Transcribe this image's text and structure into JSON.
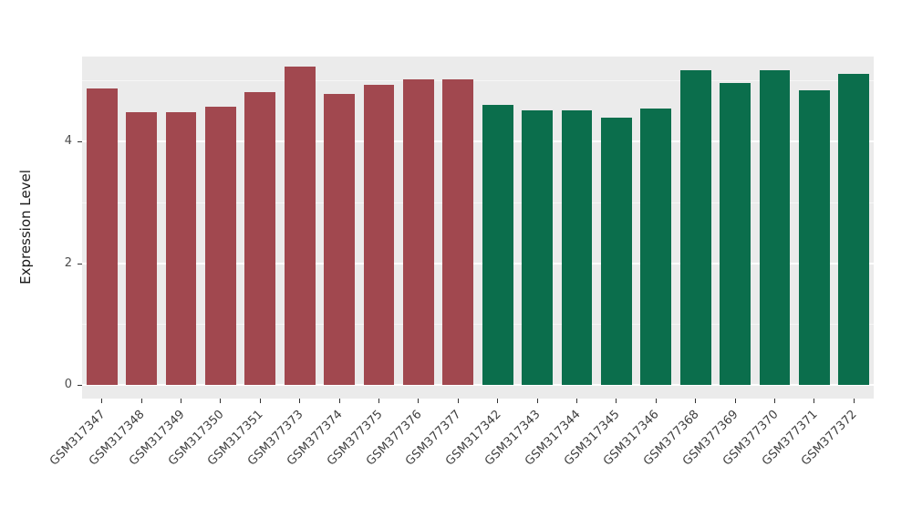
{
  "figure": {
    "background": "#FFFFFF",
    "panel_background": "#EBEBEB",
    "grid_major_color": "#FFFFFF",
    "grid_minor_color": "#FFFFFF",
    "axis_text_color": "#4D4D4D"
  },
  "chart_data": {
    "type": "bar",
    "title": "",
    "xlabel": "",
    "ylabel": "Expression Level",
    "ylim": [
      -0.22,
      5.4
    ],
    "yticks": [
      0,
      2,
      4
    ],
    "ytick_labels": [
      "0",
      "2",
      "4"
    ],
    "minor_ticks": [
      1,
      3,
      5
    ],
    "grid": true,
    "legend": false,
    "categories": [
      "GSM317347",
      "GSM317348",
      "GSM317349",
      "GSM317350",
      "GSM317351",
      "GSM377373",
      "GSM377374",
      "GSM377375",
      "GSM377376",
      "GSM377377",
      "GSM317342",
      "GSM317343",
      "GSM317344",
      "GSM317345",
      "GSM317346",
      "GSM377368",
      "GSM377369",
      "GSM377370",
      "GSM377371",
      "GSM377372"
    ],
    "values": [
      4.87,
      4.49,
      4.49,
      4.57,
      4.81,
      5.24,
      4.78,
      4.94,
      5.03,
      5.02,
      4.61,
      4.51,
      4.51,
      4.39,
      4.54,
      5.18,
      4.97,
      5.18,
      4.84,
      5.11
    ],
    "colors": [
      "#A1484F",
      "#A1484F",
      "#A1484F",
      "#A1484F",
      "#A1484F",
      "#A1484F",
      "#A1484F",
      "#A1484F",
      "#A1484F",
      "#A1484F",
      "#0B6E4C",
      "#0B6E4C",
      "#0B6E4C",
      "#0B6E4C",
      "#0B6E4C",
      "#0B6E4C",
      "#0B6E4C",
      "#0B6E4C",
      "#0B6E4C",
      "#0B6E4C"
    ],
    "group_colors": {
      "group1": "#A1484F",
      "group2": "#0B6E4C"
    }
  }
}
